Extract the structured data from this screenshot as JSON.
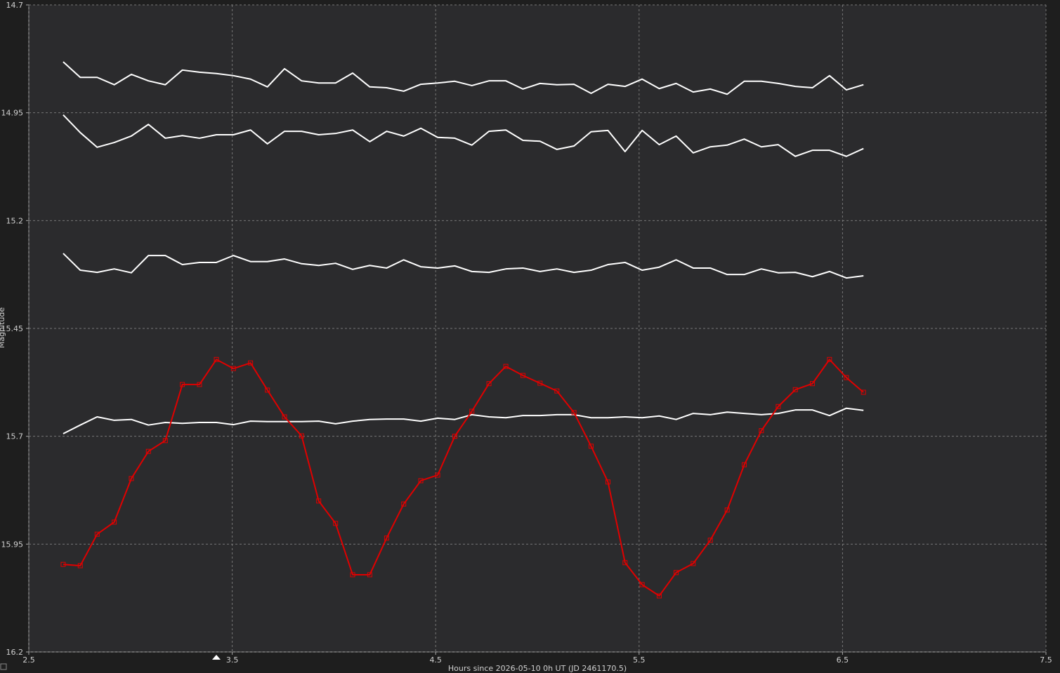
{
  "chart_data": {
    "type": "line",
    "x_label": "Hours since 2026-05-10 0h UT (JD 2461170.5)",
    "y_label": "Magnitude",
    "xlim": [
      2.5,
      7.5
    ],
    "xticks": [
      2.5,
      3.5,
      4.5,
      5.5,
      6.5,
      7.5
    ],
    "ylim": [
      14.7,
      16.2
    ],
    "yticks": [
      14.7,
      14.95,
      15.2,
      15.45,
      15.7,
      15.95,
      16.2
    ],
    "y_inverted": true,
    "grid": true,
    "x": [
      2.669,
      2.753,
      2.836,
      2.92,
      3.004,
      3.088,
      3.171,
      3.255,
      3.339,
      3.422,
      3.506,
      3.59,
      3.673,
      3.757,
      3.841,
      3.925,
      4.008,
      4.092,
      4.176,
      4.259,
      4.343,
      4.427,
      4.51,
      4.594,
      4.678,
      4.762,
      4.845,
      4.929,
      5.013,
      5.096,
      5.18,
      5.264,
      5.347,
      5.431,
      5.515,
      5.599,
      5.682,
      5.766,
      5.85,
      5.933,
      6.017,
      6.101,
      6.184,
      6.268,
      6.352,
      6.436,
      6.519,
      6.603
    ],
    "series": [
      {
        "color": "#ffffff",
        "values": [
          14.832,
          14.868,
          14.868,
          14.885,
          14.861,
          14.876,
          14.885,
          14.851,
          14.856,
          14.859,
          14.864,
          14.872,
          14.89,
          14.848,
          14.876,
          14.881,
          14.881,
          14.858,
          14.89,
          14.892,
          14.9,
          14.884,
          14.881,
          14.877,
          14.887,
          14.876,
          14.876,
          14.895,
          14.882,
          14.885,
          14.884,
          14.905,
          14.884,
          14.889,
          14.872,
          14.894,
          14.882,
          14.902,
          14.895,
          14.907,
          14.877,
          14.877,
          14.882,
          14.889,
          14.892,
          14.864,
          14.897,
          14.885
        ]
      },
      {
        "color": "#ffffff",
        "values": [
          14.955,
          14.996,
          15.03,
          15.019,
          15.004,
          14.977,
          15.009,
          15.003,
          15.009,
          15.001,
          15.001,
          14.99,
          15.022,
          14.993,
          14.993,
          15.001,
          14.998,
          14.99,
          15.017,
          14.993,
          15.004,
          14.986,
          15.007,
          15.009,
          15.025,
          14.993,
          14.99,
          15.014,
          15.016,
          15.035,
          15.027,
          14.994,
          14.991,
          15.04,
          14.991,
          15.024,
          15.004,
          15.043,
          15.029,
          15.025,
          15.011,
          15.029,
          15.024,
          15.051,
          15.037,
          15.037,
          15.051,
          15.033
        ]
      },
      {
        "color": "#ffffff",
        "values": [
          15.276,
          15.315,
          15.32,
          15.312,
          15.321,
          15.281,
          15.281,
          15.302,
          15.297,
          15.297,
          15.281,
          15.295,
          15.295,
          15.289,
          15.3,
          15.304,
          15.299,
          15.313,
          15.304,
          15.31,
          15.291,
          15.307,
          15.31,
          15.305,
          15.318,
          15.32,
          15.312,
          15.31,
          15.318,
          15.312,
          15.32,
          15.315,
          15.302,
          15.297,
          15.315,
          15.308,
          15.291,
          15.31,
          15.31,
          15.325,
          15.325,
          15.312,
          15.321,
          15.32,
          15.33,
          15.318,
          15.333,
          15.328
        ]
      },
      {
        "color": "#ffffff",
        "values": [
          15.694,
          15.674,
          15.655,
          15.663,
          15.661,
          15.674,
          15.668,
          15.67,
          15.668,
          15.668,
          15.673,
          15.665,
          15.666,
          15.666,
          15.666,
          15.665,
          15.671,
          15.665,
          15.661,
          15.66,
          15.66,
          15.665,
          15.658,
          15.661,
          15.65,
          15.655,
          15.657,
          15.652,
          15.652,
          15.65,
          15.65,
          15.657,
          15.657,
          15.655,
          15.657,
          15.653,
          15.661,
          15.647,
          15.65,
          15.644,
          15.647,
          15.65,
          15.647,
          15.639,
          15.639,
          15.652,
          15.635,
          15.64
        ]
      },
      {
        "color": "#e00000",
        "marker": "square",
        "values": [
          15.997,
          16.0,
          15.927,
          15.899,
          15.798,
          15.735,
          15.71,
          15.58,
          15.58,
          15.522,
          15.543,
          15.53,
          15.593,
          15.655,
          15.699,
          15.85,
          15.902,
          16.021,
          16.021,
          15.936,
          15.857,
          15.803,
          15.79,
          15.7,
          15.642,
          15.578,
          15.538,
          15.559,
          15.577,
          15.595,
          15.645,
          15.723,
          15.806,
          15.993,
          16.044,
          16.07,
          16.016,
          15.995,
          15.941,
          15.871,
          15.766,
          15.687,
          15.631,
          15.592,
          15.578,
          15.522,
          15.564,
          15.598
        ]
      }
    ]
  }
}
